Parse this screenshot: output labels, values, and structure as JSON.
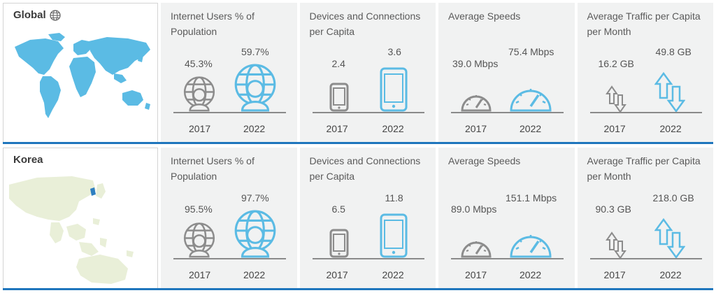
{
  "regions": [
    {
      "name": "Global",
      "icon": "globe-icon",
      "metrics": {
        "users": {
          "title": "Internet Users % of Population",
          "v2017": "45.3%",
          "v2022": "59.7%",
          "y2017": "2017",
          "y2022": "2022"
        },
        "devices": {
          "title": "Devices and Connections per Capita",
          "v2017": "2.4",
          "v2022": "3.6",
          "y2017": "2017",
          "y2022": "2022"
        },
        "speeds": {
          "title": "Average Speeds",
          "v2017": "39.0 Mbps",
          "v2022": "75.4 Mbps",
          "y2017": "2017",
          "y2022": "2022"
        },
        "traffic": {
          "title": "Average Traffic per Capita per Month",
          "v2017": "16.2 GB",
          "v2022": "49.8 GB",
          "y2017": "2017",
          "y2022": "2022"
        }
      }
    },
    {
      "name": "Korea",
      "metrics": {
        "users": {
          "title": "Internet Users % of Population",
          "v2017": "95.5%",
          "v2022": "97.7%",
          "y2017": "2017",
          "y2022": "2022"
        },
        "devices": {
          "title": "Devices and Connections per Capita",
          "v2017": "6.5",
          "v2022": "11.8",
          "y2017": "2017",
          "y2022": "2022"
        },
        "speeds": {
          "title": "Average Speeds",
          "v2017": "89.0 Mbps",
          "v2022": "151.1 Mbps",
          "y2017": "2017",
          "y2022": "2022"
        },
        "traffic": {
          "title": "Average Traffic per Capita per Month",
          "v2017": "90.3 GB",
          "v2022": "218.0 GB",
          "y2017": "2017",
          "y2022": "2022"
        }
      }
    }
  ],
  "colors": {
    "accent": "#5bbbe4",
    "gray_icon": "#8c8c8c",
    "baseline": "#8a8a8a",
    "rule": "#1f76bd",
    "cell_bg": "#f1f2f2",
    "world_map": "#5bbbe4",
    "korea_land": "#e9efd8",
    "korea_highlight": "#2f7fc1"
  }
}
